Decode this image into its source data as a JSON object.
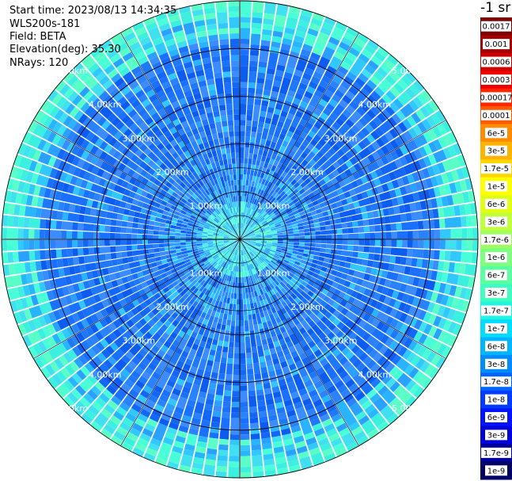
{
  "header": {
    "start_time": "Start time: 2023/08/13 14:34:35",
    "device": "WLS200s-181",
    "field": "Field: BETA",
    "elevation": "Elevation(deg): 35.30",
    "nrays": "NRays: 120",
    "unit": "-1 sr"
  },
  "ppi": {
    "field": "BETA",
    "elevation_deg": 35.3,
    "nrays": 120,
    "max_range_km": 5.0,
    "ring_labels": [
      "1.00km",
      "2.00km",
      "3.00km",
      "4.00km",
      "5.00km"
    ],
    "ring_label_angles_deg": [
      45,
      135,
      225,
      315
    ],
    "spokes_deg": [
      0,
      30,
      60,
      90,
      120,
      150,
      180,
      210,
      240,
      270,
      300,
      330
    ]
  },
  "colorbar": {
    "labels": [
      "0.0017",
      "0.001",
      "0.0006",
      "0.0003",
      "0.00017",
      "0.0001",
      "6e-5",
      "3e-5",
      "1.7e-5",
      "1e-5",
      "6e-6",
      "3e-6",
      "1.7e-6",
      "1e-6",
      "6e-7",
      "3e-7",
      "1.7e-7",
      "1e-7",
      "6e-8",
      "3e-8",
      "1.7e-8",
      "1e-8",
      "6e-9",
      "3e-9",
      "1.7e-9",
      "1e-9"
    ],
    "colors": [
      "#7a0000",
      "#a60000",
      "#cc0000",
      "#f20000",
      "#ff2600",
      "#ff5a00",
      "#ff8c00",
      "#ffb200",
      "#ffd600",
      "#ffff00",
      "#e0ff14",
      "#c0ff3d",
      "#a0ff60",
      "#7dff80",
      "#5affa0",
      "#3dffc0",
      "#20f5e0",
      "#00dcff",
      "#00b4ff",
      "#008cff",
      "#0064ff",
      "#003cff",
      "#0014ff",
      "#0000d8",
      "#00009c",
      "#000066"
    ]
  }
}
